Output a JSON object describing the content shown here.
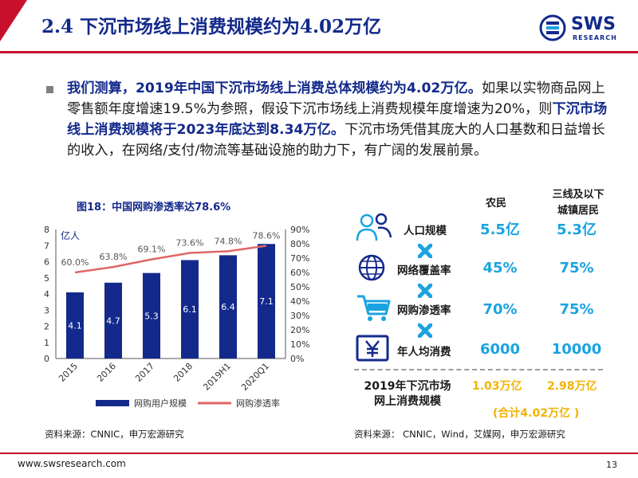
{
  "header": {
    "title": "2.4 下沉市场线上消费规模约为4.02万亿",
    "logo_text": "SWS",
    "logo_sub": "RESEARCH",
    "accent": "#c8102e",
    "brand": "#13298b"
  },
  "paragraph": {
    "p1": "我们测算，2019年中国下沉市场线上消费总体规模约为4.02万亿。",
    "p2": "如果以实物商品网上零售额年度增速19.5%为参照，假设下沉市场线上消费规模年度增速为20%，则",
    "p3": "下沉市场线上消费规模将于2023年底达到8.34万亿。",
    "p4": "下沉市场凭借其庞大的人口基数和日益增长的收入，在网络/支付/物流等基础设施的助力下，有广阔的发展前景。"
  },
  "chart_caption": "图18：中国网购渗透率达78.6%",
  "chart_data": {
    "type": "bar",
    "categories": [
      "2015",
      "2016",
      "2017",
      "2018",
      "2019H1",
      "2020Q1"
    ],
    "series": [
      {
        "name": "网购用户规模",
        "type": "bar",
        "axis": "left",
        "values": [
          4.1,
          4.7,
          5.3,
          6.1,
          6.4,
          7.1
        ],
        "labels": [
          "4.1",
          "4.7",
          "5.3",
          "6.1",
          "6.4",
          "7.1"
        ],
        "color": "#13298b"
      },
      {
        "name": "网购渗透率",
        "type": "line",
        "axis": "right",
        "values": [
          60.0,
          63.8,
          69.1,
          73.6,
          74.8,
          78.6
        ],
        "labels": [
          "60.0%",
          "63.8%",
          "69.1%",
          "73.6%",
          "74.8%",
          "78.6%"
        ],
        "color": "#e06666"
      }
    ],
    "y_left": {
      "unit_label": "亿人",
      "min": 0,
      "max": 8,
      "ticks": [
        "0",
        "1",
        "2",
        "3",
        "4",
        "5",
        "6",
        "7",
        "8"
      ]
    },
    "y_right": {
      "min": 0,
      "max": 90,
      "ticks": [
        "0%",
        "10%",
        "20%",
        "30%",
        "40%",
        "50%",
        "60%",
        "70%",
        "80%",
        "90%"
      ]
    },
    "grid": false,
    "legend_position": "bottom"
  },
  "source_left": "资料来源：CNNIC，申万宏源研究",
  "panel": {
    "col1": "农民",
    "col2a": "三线及以下",
    "col2b": "城镇居民",
    "rows": [
      {
        "icon": "people-icon",
        "label": "人口规模",
        "v1": "5.5亿",
        "v2": "5.3亿"
      },
      {
        "icon": "globe-icon",
        "label": "网络覆盖率",
        "v1": "45%",
        "v2": "75%"
      },
      {
        "icon": "cart-icon",
        "label": "网购渗透率",
        "v1": "70%",
        "v2": "75%"
      },
      {
        "icon": "yen-icon",
        "label": "年人均消费",
        "v1": "6000",
        "v2": "10000"
      }
    ],
    "total_line1": "2019年下沉市场",
    "total_line2": "网上消费规模",
    "t1": "1.03万亿",
    "t2": "2.98万亿",
    "total_sum": "(合计4.02万亿 )",
    "value_color": "#1aa3e0",
    "gold_color": "#f2b200"
  },
  "source_right": "资料来源： CNNIC，Wind，艾媒网，申万宏源研究",
  "footer": {
    "url": "www.swsresearch.com",
    "page": "13"
  }
}
